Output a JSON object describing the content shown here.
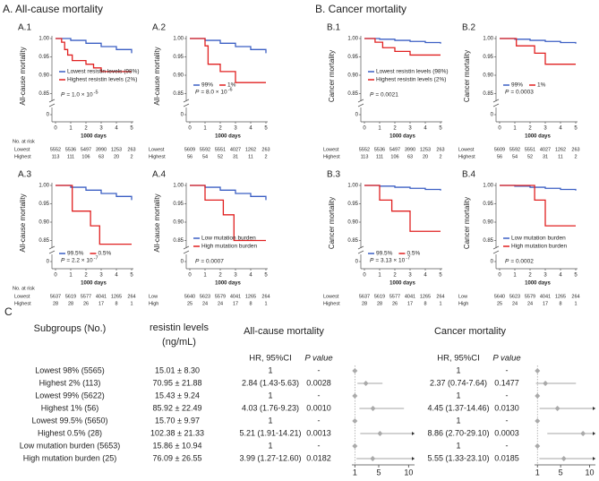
{
  "sections": {
    "a": "A. All-cause mortality",
    "b": "B. Cancer mortality",
    "c": "C"
  },
  "chart_data": [
    {
      "type": "step",
      "title": "A.1",
      "ylabel": "All-cause mortality",
      "xlabel": "1000 days",
      "xlim": [
        0,
        5
      ],
      "xticks": [
        0,
        1,
        2,
        3,
        4,
        5
      ],
      "ylim": [
        0.85,
        1
      ],
      "yticks": [
        {
          "value": 0.85,
          "label": "0.85"
        },
        {
          "value": 0.9,
          "label": "0.90"
        },
        {
          "value": 0.95,
          "label": "0.95"
        },
        {
          "value": 1,
          "label": "1.00"
        }
      ],
      "ybreak_tick": 0,
      "legend": "center-left",
      "legend_layout": "column",
      "series": [
        {
          "name": "Lowest resistin levels (98%)",
          "color": "#3b5fc4",
          "x": [
            0,
            1,
            2,
            3,
            4,
            5
          ],
          "values": [
            1,
            0.995,
            0.987,
            0.978,
            0.97,
            0.96
          ]
        },
        {
          "name": "Highest resistin levels (2%)",
          "color": "#e02020",
          "x": [
            0,
            0.4,
            0.6,
            0.8,
            1.1,
            2,
            2.5,
            3,
            5
          ],
          "values": [
            1,
            0.99,
            0.97,
            0.955,
            0.94,
            0.93,
            0.92,
            0.91,
            0.91
          ]
        }
      ],
      "p_label": "P",
      "p_text": "= 1.0 × 10",
      "p_exp": "-5",
      "risk_title": "No. at risk",
      "risk": [
        {
          "name": "Lowest",
          "values": [
            5552,
            5536,
            5497,
            3990,
            1253,
            263
          ]
        },
        {
          "name": "Highest",
          "values": [
            113,
            111,
            106,
            63,
            20,
            2
          ]
        }
      ]
    },
    {
      "type": "step",
      "title": "A.2",
      "ylabel": "All-cause mortality",
      "xlabel": "1000 days",
      "xlim": [
        0,
        5
      ],
      "xticks": [
        0,
        1,
        2,
        3,
        4,
        5
      ],
      "ylim": [
        0.85,
        1
      ],
      "yticks": [
        {
          "value": 0.85,
          "label": "0.85"
        },
        {
          "value": 0.9,
          "label": "0.90"
        },
        {
          "value": 0.95,
          "label": "0.95"
        },
        {
          "value": 1,
          "label": "1.00"
        }
      ],
      "ybreak_tick": 0,
      "legend": "center-left",
      "legend_layout": "row",
      "series": [
        {
          "name": "99%",
          "color": "#3b5fc4",
          "x": [
            0,
            1,
            2,
            3,
            4,
            5
          ],
          "values": [
            1,
            0.995,
            0.987,
            0.978,
            0.97,
            0.96
          ]
        },
        {
          "name": "1%",
          "color": "#e02020",
          "x": [
            0,
            1,
            1.2,
            2,
            3,
            5
          ],
          "values": [
            1,
            0.98,
            0.93,
            0.91,
            0.88,
            0.88
          ]
        }
      ],
      "p_label": "P",
      "p_text": "= 8.0 × 10",
      "p_exp": "-6",
      "risk": [
        {
          "name": "Lowest",
          "values": [
            5609,
            5592,
            5551,
            4027,
            1262,
            263
          ]
        },
        {
          "name": "Highest",
          "values": [
            56,
            54,
            52,
            31,
            11,
            2
          ]
        }
      ]
    },
    {
      "type": "step",
      "title": "A.3",
      "ylabel": "All-cause mortality",
      "xlabel": "1000 days",
      "xlim": [
        0,
        5
      ],
      "xticks": [
        0,
        1,
        2,
        3,
        4,
        5
      ],
      "ylim": [
        0.85,
        1
      ],
      "yticks": [
        {
          "value": 0.85,
          "label": "0.85"
        },
        {
          "value": 0.9,
          "label": "0.90"
        },
        {
          "value": 0.95,
          "label": "0.95"
        },
        {
          "value": 1,
          "label": "1.00"
        }
      ],
      "ybreak_tick": 0,
      "legend": "lower-left",
      "legend_layout": "row",
      "series": [
        {
          "name": "99.5%",
          "color": "#3b5fc4",
          "x": [
            0,
            1,
            2,
            3,
            4,
            5
          ],
          "values": [
            1,
            0.995,
            0.987,
            0.978,
            0.97,
            0.96
          ]
        },
        {
          "name": "0.5%",
          "color": "#e02020",
          "x": [
            0,
            1,
            1.1,
            2.3,
            2.9,
            5
          ],
          "values": [
            1,
            1,
            0.93,
            0.89,
            0.84,
            0.84
          ]
        }
      ],
      "p_label": "P",
      "p_text": "= 2.2 × 10",
      "p_exp": "-7",
      "risk_title": "No. at risk",
      "risk": [
        {
          "name": "Lowest",
          "values": [
            5637,
            5619,
            5577,
            4041,
            1265,
            264
          ]
        },
        {
          "name": "Highest",
          "values": [
            28,
            28,
            26,
            17,
            8,
            1
          ]
        }
      ]
    },
    {
      "type": "step",
      "title": "A.4",
      "ylabel": "All-cause mortality",
      "xlabel": "1000 days",
      "xlim": [
        0,
        5
      ],
      "xticks": [
        0,
        1,
        2,
        3,
        4,
        5
      ],
      "ylim": [
        0.85,
        1
      ],
      "yticks": [
        {
          "value": 0.85,
          "label": "0.85"
        },
        {
          "value": 0.9,
          "label": "0.90"
        },
        {
          "value": 0.95,
          "label": "0.95"
        },
        {
          "value": 1,
          "label": "1.00"
        }
      ],
      "ybreak_tick": 0,
      "legend": "lower-left",
      "legend_layout": "column",
      "series": [
        {
          "name": "Low mutation burden",
          "color": "#3b5fc4",
          "x": [
            0,
            1,
            2,
            3,
            4,
            5
          ],
          "values": [
            1,
            0.995,
            0.987,
            0.978,
            0.97,
            0.96
          ]
        },
        {
          "name": "High mutation burden",
          "color": "#e02020",
          "x": [
            0,
            1,
            2.2,
            2.9,
            5
          ],
          "values": [
            1,
            0.96,
            0.92,
            0.85,
            0.85
          ]
        }
      ],
      "p_label": "P",
      "p_text": "= 0.0007",
      "risk": [
        {
          "name": "Low",
          "values": [
            5640,
            5623,
            5579,
            4041,
            1265,
            264
          ]
        },
        {
          "name": "High",
          "values": [
            25,
            24,
            24,
            17,
            8,
            1
          ]
        }
      ]
    },
    {
      "type": "step",
      "title": "B.1",
      "ylabel": "Cancer mortality",
      "xlabel": "1000 days",
      "xlim": [
        0,
        5
      ],
      "xticks": [
        0,
        1,
        2,
        3,
        4,
        5
      ],
      "ylim": [
        0.85,
        1
      ],
      "yticks": [
        {
          "value": 0.85,
          "label": "0.85"
        },
        {
          "value": 0.9,
          "label": "0.90"
        },
        {
          "value": 0.95,
          "label": "0.95"
        },
        {
          "value": 1,
          "label": "1.00"
        }
      ],
      "ybreak_tick": 0,
      "legend": "center-left",
      "legend_layout": "column",
      "series": [
        {
          "name": "Lowest resistin levels (98%)",
          "color": "#3b5fc4",
          "x": [
            0,
            1,
            2,
            3,
            4,
            5
          ],
          "values": [
            1,
            0.998,
            0.995,
            0.992,
            0.989,
            0.986
          ]
        },
        {
          "name": "Highest resistin levels (2%)",
          "color": "#e02020",
          "x": [
            0,
            0.7,
            1.2,
            2,
            3,
            5
          ],
          "values": [
            1,
            0.99,
            0.975,
            0.965,
            0.955,
            0.955
          ]
        }
      ],
      "p_label": "P",
      "p_text": "= 0.0021",
      "risk": [
        {
          "name": "Lowest",
          "values": [
            5552,
            5536,
            5497,
            3990,
            1253,
            263
          ]
        },
        {
          "name": "Highest",
          "values": [
            113,
            111,
            106,
            63,
            20,
            2
          ]
        }
      ]
    },
    {
      "type": "step",
      "title": "B.2",
      "ylabel": "Cancer mortality",
      "xlabel": "1000 days",
      "xlim": [
        0,
        5
      ],
      "xticks": [
        0,
        1,
        2,
        3,
        4,
        5
      ],
      "ylim": [
        0.85,
        1
      ],
      "yticks": [
        {
          "value": 0.85,
          "label": "0.85"
        },
        {
          "value": 0.9,
          "label": "0.90"
        },
        {
          "value": 0.95,
          "label": "0.95"
        },
        {
          "value": 1,
          "label": "1.00"
        }
      ],
      "ybreak_tick": 0,
      "legend": "center-left",
      "legend_layout": "row",
      "series": [
        {
          "name": "99%",
          "color": "#3b5fc4",
          "x": [
            0,
            1,
            2,
            3,
            4,
            5
          ],
          "values": [
            1,
            0.998,
            0.995,
            0.992,
            0.989,
            0.986
          ]
        },
        {
          "name": "1%",
          "color": "#e02020",
          "x": [
            0,
            1.1,
            2.3,
            3,
            5
          ],
          "values": [
            1,
            0.98,
            0.96,
            0.93,
            0.93
          ]
        }
      ],
      "p_label": "P",
      "p_text": "= 0.0003",
      "risk": [
        {
          "name": "Lowest",
          "values": [
            5609,
            5592,
            5551,
            4027,
            1262,
            263
          ]
        },
        {
          "name": "Highest",
          "values": [
            56,
            54,
            52,
            31,
            11,
            2
          ]
        }
      ]
    },
    {
      "type": "step",
      "title": "B.3",
      "ylabel": "Cancer mortality",
      "xlabel": "1000 days",
      "xlim": [
        0,
        5
      ],
      "xticks": [
        0,
        1,
        2,
        3,
        4,
        5
      ],
      "ylim": [
        0.85,
        1
      ],
      "yticks": [
        {
          "value": 0.85,
          "label": "0.85"
        },
        {
          "value": 0.9,
          "label": "0.90"
        },
        {
          "value": 0.95,
          "label": "0.95"
        },
        {
          "value": 1,
          "label": "1.00"
        }
      ],
      "ybreak_tick": 0,
      "legend": "lower-left",
      "legend_layout": "row",
      "series": [
        {
          "name": "99.5%",
          "color": "#3b5fc4",
          "x": [
            0,
            1,
            2,
            3,
            4,
            5
          ],
          "values": [
            1,
            0.998,
            0.995,
            0.992,
            0.989,
            0.986
          ]
        },
        {
          "name": "0.5%",
          "color": "#e02020",
          "x": [
            0,
            1,
            1.8,
            3,
            5
          ],
          "values": [
            1,
            0.96,
            0.93,
            0.875,
            0.875
          ]
        }
      ],
      "p_label": "P",
      "p_text": "= 3.13 × 10",
      "p_exp": "-7",
      "risk": [
        {
          "name": "Lowest",
          "values": [
            5637,
            5619,
            5577,
            4041,
            1265,
            264
          ]
        },
        {
          "name": "Highest",
          "values": [
            28,
            28,
            26,
            17,
            8,
            1
          ]
        }
      ]
    },
    {
      "type": "step",
      "title": "B.4",
      "ylabel": "Cancer mortality",
      "xlabel": "1000 days",
      "xlim": [
        0,
        5
      ],
      "xticks": [
        0,
        1,
        2,
        3,
        4,
        5
      ],
      "ylim": [
        0.85,
        1
      ],
      "yticks": [
        {
          "value": 0.85,
          "label": "0.85"
        },
        {
          "value": 0.9,
          "label": "0.90"
        },
        {
          "value": 0.95,
          "label": "0.95"
        },
        {
          "value": 1,
          "label": "1.00"
        }
      ],
      "ybreak_tick": 0,
      "legend": "lower-left",
      "legend_layout": "column",
      "series": [
        {
          "name": "Low mutation burden",
          "color": "#3b5fc4",
          "x": [
            0,
            1,
            2,
            3,
            4,
            5
          ],
          "values": [
            1,
            0.998,
            0.995,
            0.992,
            0.989,
            0.986
          ]
        },
        {
          "name": "High mutation burden",
          "color": "#e02020",
          "x": [
            0,
            2.3,
            3,
            5
          ],
          "values": [
            1,
            0.96,
            0.89,
            0.89
          ]
        }
      ],
      "p_label": "P",
      "p_text": "= 0.0002",
      "risk": [
        {
          "name": "Low",
          "values": [
            5640,
            5623,
            5579,
            4041,
            1265,
            264
          ]
        },
        {
          "name": "High",
          "values": [
            25,
            24,
            24,
            17,
            8,
            1
          ]
        }
      ]
    },
    {
      "type": "forest",
      "xlim": [
        0.5,
        11
      ],
      "xticks": [
        1,
        5,
        10
      ],
      "ref_value": 1,
      "values": [
        1,
        2.84,
        1,
        4.03,
        1,
        5.21,
        1,
        3.99
      ],
      "lower": [
        null,
        1.43,
        null,
        1.76,
        null,
        1.91,
        null,
        1.27
      ],
      "upper": [
        null,
        5.63,
        null,
        9.23,
        null,
        14.21,
        null,
        12.6
      ],
      "value_labels": [
        "1",
        "2.84 (1.43-5.63)",
        "1",
        "4.03 (1.76-9.23)",
        "1",
        "5.21 (1.91-14.21)",
        "1",
        "3.99 (1.27-12.60)"
      ]
    },
    {
      "type": "forest",
      "xlim": [
        0.5,
        11
      ],
      "xticks": [
        1,
        5,
        10
      ],
      "ref_value": 1,
      "values": [
        1,
        2.37,
        1,
        4.45,
        1,
        8.86,
        1,
        5.55
      ],
      "lower": [
        null,
        0.74,
        null,
        1.37,
        null,
        2.7,
        null,
        1.33
      ],
      "upper": [
        null,
        7.64,
        null,
        14.46,
        null,
        29.1,
        null,
        23.1
      ],
      "value_labels": [
        "1",
        "2.37 (0.74-7.64)",
        "1",
        "4.45 (1.37-14.46)",
        "1",
        "8.86 (2.70-29.10)",
        "1",
        "5.55 (1.33-23.10)"
      ]
    }
  ],
  "table": {
    "headers": {
      "subgroup": "Subgroups (No.)",
      "resistin": [
        "resistin levels",
        "(ng/mL)"
      ],
      "ac": "All-cause mortality",
      "ca": "Cancer mortality",
      "hr": "HR, 95%CI",
      "p": "P value"
    },
    "rows": [
      {
        "subgroup": "Lowest 98% (5565)",
        "resistin": "15.01 ± 8.30"
      },
      {
        "subgroup": "Highest 2% (113)",
        "resistin": "70.95 ± 21.88"
      },
      {
        "subgroup": "Lowest 99% (5622)",
        "resistin": "15.43 ± 9.24"
      },
      {
        "subgroup": "Highest 1% (56)",
        "resistin": "85.92 ± 22.49"
      },
      {
        "subgroup": "Lowest 99.5% (5650)",
        "resistin": "15.70 ± 9.97"
      },
      {
        "subgroup": "Highest 0.5% (28)",
        "resistin": "102.38 ± 21.33"
      },
      {
        "subgroup": "Low mutation burden (5653)",
        "resistin": "15.86 ± 10.94"
      },
      {
        "subgroup": "High mutation burden (25)",
        "resistin": "76.09 ± 26.55"
      }
    ],
    "ac_p": [
      "-",
      "0.0028",
      "-",
      "0.0010",
      "-",
      "0.0013",
      "-",
      "0.0182"
    ],
    "ca_p": [
      "-",
      "0.1477",
      "-",
      "0.0130",
      "-",
      "0.0003",
      "-",
      "0.0185"
    ]
  }
}
